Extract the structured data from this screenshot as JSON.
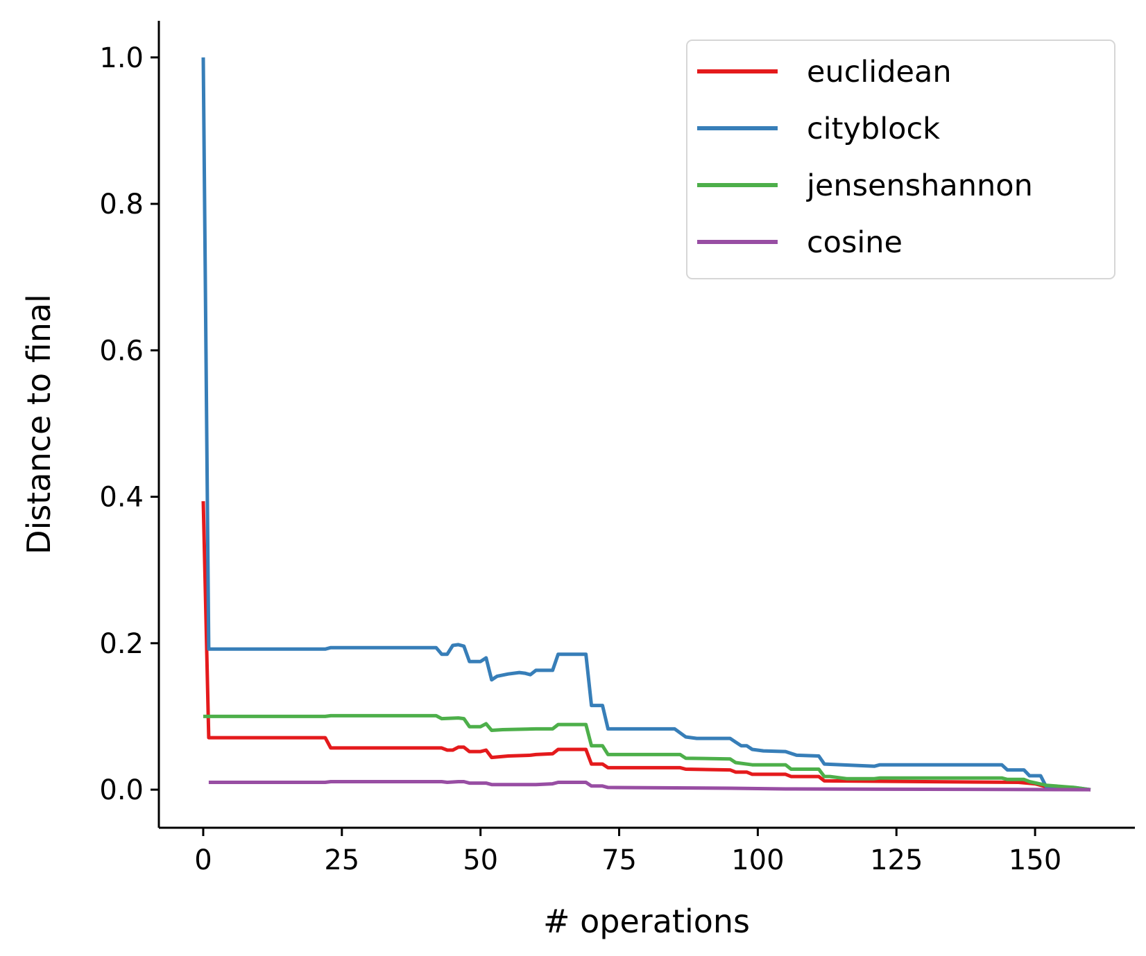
{
  "chart_data": {
    "type": "line",
    "xlabel": "# operations",
    "ylabel": "Distance to final",
    "xlim": [
      -8,
      168
    ],
    "ylim": [
      -0.052,
      1.05
    ],
    "xticks": [
      0,
      25,
      50,
      75,
      100,
      125,
      150
    ],
    "xtick_labels": [
      "0",
      "25",
      "50",
      "75",
      "100",
      "125",
      "150"
    ],
    "yticks": [
      0.0,
      0.2,
      0.4,
      0.6,
      0.8,
      1.0
    ],
    "ytick_labels": [
      "0.0",
      "0.2",
      "0.4",
      "0.6",
      "0.8",
      "1.0"
    ],
    "grid": false,
    "legend_position": "top-right",
    "series": [
      {
        "name": "euclidean",
        "color": "#e41a1c",
        "points": [
          [
            0,
            0.394
          ],
          [
            1,
            0.071
          ],
          [
            22,
            0.071
          ],
          [
            23,
            0.057
          ],
          [
            43,
            0.057
          ],
          [
            44,
            0.054
          ],
          [
            45,
            0.054
          ],
          [
            46,
            0.058
          ],
          [
            47,
            0.058
          ],
          [
            48,
            0.052
          ],
          [
            50,
            0.052
          ],
          [
            51,
            0.054
          ],
          [
            52,
            0.044
          ],
          [
            55,
            0.046
          ],
          [
            59,
            0.047
          ],
          [
            60,
            0.048
          ],
          [
            63,
            0.049
          ],
          [
            64,
            0.055
          ],
          [
            69,
            0.055
          ],
          [
            70,
            0.035
          ],
          [
            72,
            0.035
          ],
          [
            73,
            0.03
          ],
          [
            86,
            0.03
          ],
          [
            87,
            0.028
          ],
          [
            95,
            0.027
          ],
          [
            96,
            0.024
          ],
          [
            98,
            0.024
          ],
          [
            99,
            0.021
          ],
          [
            105,
            0.021
          ],
          [
            106,
            0.018
          ],
          [
            111,
            0.018
          ],
          [
            112,
            0.012
          ],
          [
            147,
            0.01
          ],
          [
            150,
            0.008
          ],
          [
            152,
            0.004
          ],
          [
            156,
            0.002
          ],
          [
            160,
            0.0
          ]
        ]
      },
      {
        "name": "cityblock",
        "color": "#377eb8",
        "points": [
          [
            0,
            1.0
          ],
          [
            1,
            0.192
          ],
          [
            22,
            0.192
          ],
          [
            23,
            0.194
          ],
          [
            42,
            0.194
          ],
          [
            43,
            0.185
          ],
          [
            44,
            0.185
          ],
          [
            45,
            0.197
          ],
          [
            46,
            0.198
          ],
          [
            47,
            0.196
          ],
          [
            48,
            0.175
          ],
          [
            50,
            0.175
          ],
          [
            51,
            0.18
          ],
          [
            52,
            0.15
          ],
          [
            53,
            0.155
          ],
          [
            55,
            0.158
          ],
          [
            57,
            0.16
          ],
          [
            58,
            0.159
          ],
          [
            59,
            0.157
          ],
          [
            60,
            0.163
          ],
          [
            63,
            0.163
          ],
          [
            64,
            0.185
          ],
          [
            69,
            0.185
          ],
          [
            70,
            0.115
          ],
          [
            72,
            0.115
          ],
          [
            73,
            0.083
          ],
          [
            85,
            0.083
          ],
          [
            87,
            0.072
          ],
          [
            89,
            0.07
          ],
          [
            95,
            0.07
          ],
          [
            96,
            0.065
          ],
          [
            97,
            0.06
          ],
          [
            98,
            0.06
          ],
          [
            99,
            0.055
          ],
          [
            101,
            0.053
          ],
          [
            105,
            0.052
          ],
          [
            107,
            0.047
          ],
          [
            111,
            0.046
          ],
          [
            112,
            0.035
          ],
          [
            121,
            0.032
          ],
          [
            122,
            0.034
          ],
          [
            144,
            0.034
          ],
          [
            145,
            0.027
          ],
          [
            148,
            0.027
          ],
          [
            149,
            0.019
          ],
          [
            151,
            0.019
          ],
          [
            152,
            0.004
          ],
          [
            157,
            0.003
          ],
          [
            160,
            0.0
          ]
        ]
      },
      {
        "name": "jensenshannon",
        "color": "#4daf4a",
        "points": [
          [
            0,
            0.1
          ],
          [
            22,
            0.1
          ],
          [
            23,
            0.101
          ],
          [
            42,
            0.101
          ],
          [
            43,
            0.097
          ],
          [
            46,
            0.098
          ],
          [
            47,
            0.097
          ],
          [
            48,
            0.086
          ],
          [
            50,
            0.086
          ],
          [
            51,
            0.09
          ],
          [
            52,
            0.081
          ],
          [
            54,
            0.082
          ],
          [
            60,
            0.083
          ],
          [
            63,
            0.083
          ],
          [
            64,
            0.089
          ],
          [
            69,
            0.089
          ],
          [
            70,
            0.06
          ],
          [
            72,
            0.06
          ],
          [
            73,
            0.048
          ],
          [
            86,
            0.048
          ],
          [
            87,
            0.043
          ],
          [
            95,
            0.042
          ],
          [
            96,
            0.037
          ],
          [
            99,
            0.034
          ],
          [
            105,
            0.034
          ],
          [
            106,
            0.028
          ],
          [
            111,
            0.028
          ],
          [
            112,
            0.018
          ],
          [
            113,
            0.018
          ],
          [
            116,
            0.015
          ],
          [
            121,
            0.015
          ],
          [
            122,
            0.016
          ],
          [
            144,
            0.016
          ],
          [
            145,
            0.014
          ],
          [
            148,
            0.014
          ],
          [
            149,
            0.011
          ],
          [
            152,
            0.006
          ],
          [
            157,
            0.003
          ],
          [
            160,
            0.0
          ]
        ]
      },
      {
        "name": "cosine",
        "color": "#984ea3",
        "points": [
          [
            1,
            0.01
          ],
          [
            22,
            0.01
          ],
          [
            23,
            0.011
          ],
          [
            43,
            0.011
          ],
          [
            44,
            0.01
          ],
          [
            46,
            0.011
          ],
          [
            47,
            0.011
          ],
          [
            48,
            0.009
          ],
          [
            51,
            0.009
          ],
          [
            52,
            0.007
          ],
          [
            60,
            0.007
          ],
          [
            63,
            0.008
          ],
          [
            64,
            0.01
          ],
          [
            69,
            0.01
          ],
          [
            70,
            0.005
          ],
          [
            72,
            0.005
          ],
          [
            73,
            0.003
          ],
          [
            95,
            0.002
          ],
          [
            105,
            0.001
          ],
          [
            160,
            0.0
          ]
        ]
      }
    ]
  }
}
